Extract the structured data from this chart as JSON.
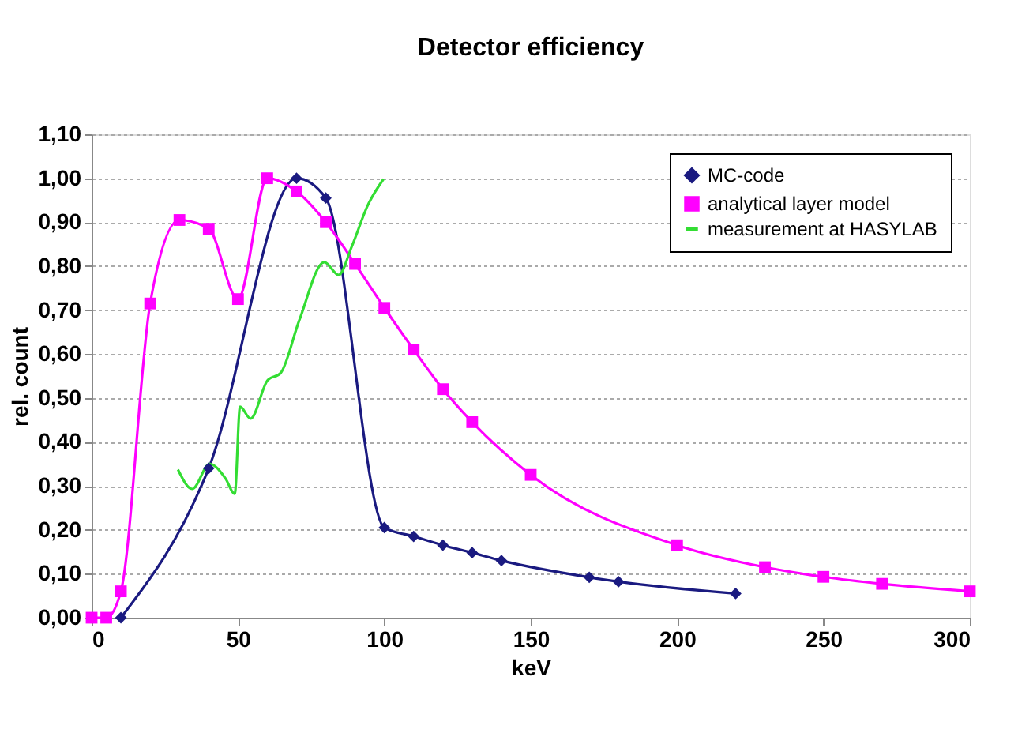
{
  "chart_data": {
    "type": "line",
    "title": "Detector efficiency",
    "xlabel": "keV",
    "ylabel": "rel. count",
    "xlim": [
      0,
      300
    ],
    "xticks": [
      0,
      50,
      100,
      150,
      200,
      250,
      300
    ],
    "ylim": [
      0,
      1.1
    ],
    "yticks": [
      {
        "value": 0,
        "label": "0,00"
      },
      {
        "value": 0.1,
        "label": "0,10"
      },
      {
        "value": 0.2,
        "label": "0,20"
      },
      {
        "value": 0.3,
        "label": "0,30"
      },
      {
        "value": 0.4,
        "label": "0,40"
      },
      {
        "value": 0.5,
        "label": "0,50"
      },
      {
        "value": 0.6,
        "label": "0,60"
      },
      {
        "value": 0.7,
        "label": "0,70"
      },
      {
        "value": 0.8,
        "label": "0,80"
      },
      {
        "value": 0.9,
        "label": "0,90"
      },
      {
        "value": 1.0,
        "label": "1,00"
      },
      {
        "value": 1.1,
        "label": "1,10"
      }
    ],
    "grid": "y",
    "legend": "top right",
    "series": [
      {
        "name": "MC-code",
        "color": "#1a1a80",
        "marker": "diamond",
        "x": [
          10,
          40,
          70,
          80,
          100,
          110,
          120,
          130,
          140,
          170,
          180,
          220
        ],
        "values": [
          0,
          0.34,
          1.0,
          0.955,
          0.205,
          0.185,
          0.165,
          0.148,
          0.13,
          0.092,
          0.082,
          0.055
        ]
      },
      {
        "name": "analytical layer model",
        "color": "#ff00ff",
        "marker": "square",
        "x": [
          0,
          5,
          10,
          20,
          30,
          40,
          50,
          60,
          70,
          80,
          90,
          100,
          110,
          120,
          130,
          150,
          200,
          230,
          250,
          270,
          300
        ],
        "values": [
          0,
          0,
          0.06,
          0.715,
          0.905,
          0.885,
          0.725,
          1.0,
          0.97,
          0.9,
          0.805,
          0.705,
          0.61,
          0.52,
          0.445,
          0.325,
          0.165,
          0.115,
          0.093,
          0.077,
          0.06
        ]
      },
      {
        "name": "measurement at HASYLAB",
        "color": "#33dd33",
        "marker": "none",
        "x": [
          29.5,
          34.4,
          40.3,
          45.7,
          48.9,
          50.7,
          54.3,
          60.1,
          64.6,
          70.9,
          79.5,
          84.4,
          88.9,
          94.3,
          99.7
        ],
        "values": [
          0.337,
          0.293,
          0.35,
          0.317,
          0.282,
          0.48,
          0.453,
          0.54,
          0.557,
          0.676,
          0.809,
          0.78,
          0.845,
          0.938,
          0.998
        ]
      }
    ]
  }
}
